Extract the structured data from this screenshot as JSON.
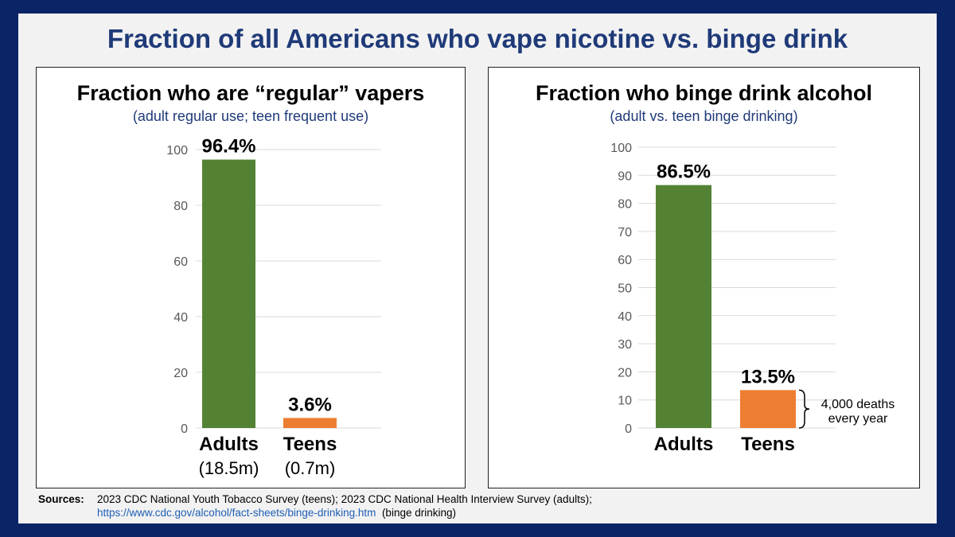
{
  "title": "Fraction of all Americans who vape nicotine vs. binge drink",
  "colors": {
    "adults": "#548235",
    "teens": "#ed7d31",
    "grid": "#d9d9d9",
    "axis_text": "#595959"
  },
  "chart_data": [
    {
      "type": "bar",
      "title": "Fraction who are “regular” vapers",
      "subtitle": "(adult regular use; teen frequent use)",
      "categories": [
        "Adults",
        "Teens"
      ],
      "sublabels": [
        "(18.5m)",
        "(0.7m)"
      ],
      "values": [
        96.4,
        3.6
      ],
      "data_labels": [
        "96.4%",
        "3.6%"
      ],
      "ylim": [
        0,
        100
      ],
      "yticks": [
        0,
        20,
        40,
        60,
        80,
        100
      ],
      "grid": true
    },
    {
      "type": "bar",
      "title": "Fraction who binge drink alcohol",
      "subtitle": "(adult vs. teen binge drinking)",
      "categories": [
        "Adults",
        "Teens"
      ],
      "values": [
        86.5,
        13.5
      ],
      "data_labels": [
        "86.5%",
        "13.5%"
      ],
      "ylim": [
        0,
        100
      ],
      "yticks": [
        0,
        10,
        20,
        30,
        40,
        50,
        60,
        70,
        80,
        90,
        100
      ],
      "grid": true,
      "annotation": {
        "lines": [
          "4,000 deaths",
          "every year"
        ],
        "target": "Teens"
      }
    }
  ],
  "sources": {
    "label": "Sources:",
    "line1": "2023 CDC National Youth Tobacco Survey (teens); 2023 CDC National Health Interview Survey (adults);",
    "link": "https://www.cdc.gov/alcohol/fact-sheets/binge-drinking.htm",
    "line2_suffix": "(binge drinking)"
  }
}
